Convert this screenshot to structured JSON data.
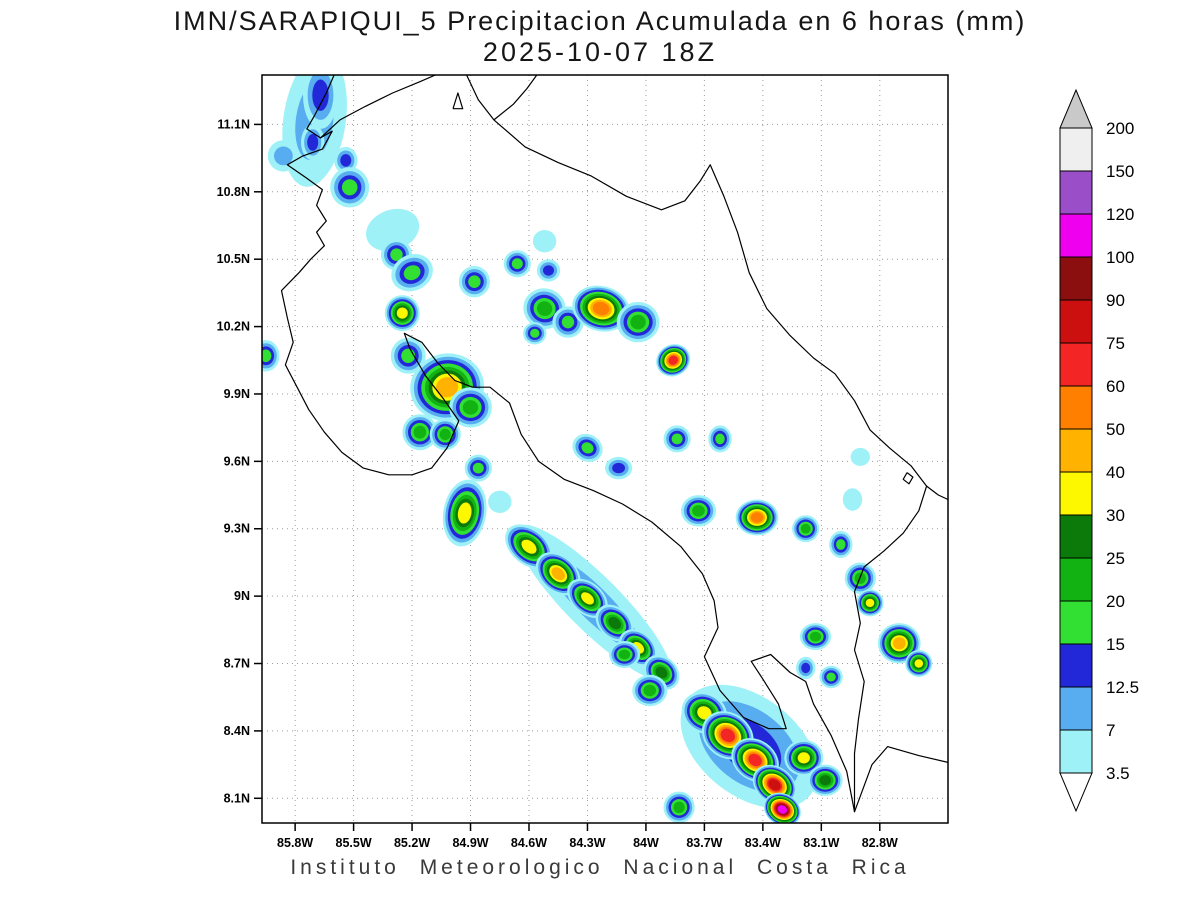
{
  "chart_data": {
    "type": "heatmap",
    "title_line1": "IMN/SARAPIQUI_5 Precipitacion Acumulada en 6 horas (mm)",
    "title_line2": "2025-10-07 18Z",
    "footer": "Instituto Meteorologico Nacional Costa Rica",
    "units": "mm",
    "extent": {
      "west": 85.97,
      "east": 82.45,
      "north": 11.32,
      "south": 7.99
    },
    "lat_ticks": [
      {
        "value": 11.1,
        "label": "11.1N"
      },
      {
        "value": 10.8,
        "label": "10.8N"
      },
      {
        "value": 10.5,
        "label": "10.5N"
      },
      {
        "value": 10.2,
        "label": "10.2N"
      },
      {
        "value": 9.9,
        "label": "9.9N"
      },
      {
        "value": 9.6,
        "label": "9.6N"
      },
      {
        "value": 9.3,
        "label": "9.3N"
      },
      {
        "value": 9.0,
        "label": "9N"
      },
      {
        "value": 8.7,
        "label": "8.7N"
      },
      {
        "value": 8.4,
        "label": "8.4N"
      },
      {
        "value": 8.1,
        "label": "8.1N"
      }
    ],
    "lon_ticks": [
      {
        "value": 85.8,
        "label": "85.8W"
      },
      {
        "value": 85.5,
        "label": "85.5W"
      },
      {
        "value": 85.2,
        "label": "85.2W"
      },
      {
        "value": 84.9,
        "label": "84.9W"
      },
      {
        "value": 84.6,
        "label": "84.6W"
      },
      {
        "value": 84.3,
        "label": "84.3W"
      },
      {
        "value": 84.0,
        "label": "84W"
      },
      {
        "value": 83.7,
        "label": "83.7W"
      },
      {
        "value": 83.4,
        "label": "83.4W"
      },
      {
        "value": 83.1,
        "label": "83.1W"
      },
      {
        "value": 82.8,
        "label": "82.8W"
      }
    ],
    "levels": [
      3.5,
      7,
      12.5,
      15,
      20,
      25,
      30,
      40,
      50,
      60,
      75,
      90,
      100,
      120,
      150,
      200
    ],
    "palette_by_level": {
      "3.5": "#9ef2f7",
      "7": "#58acf0",
      "12.5": "#2228d8",
      "15": "#31e032",
      "20": "#12b212",
      "25": "#0b7a0b",
      "30": "#fdf800",
      "40": "#ffb300",
      "50": "#ff7f00",
      "60": "#f42525",
      "75": "#cc0f0f",
      "90": "#8c0f0f",
      "100": "#ef00ef",
      "120": "#9a4fc8",
      "150": "#efefef",
      "200": "#c9c9c9"
    },
    "colorbar": {
      "boundary_labels": [
        "200",
        "150",
        "120",
        "100",
        "90",
        "75",
        "60",
        "50",
        "40",
        "30",
        "25",
        "20",
        "15",
        "12.5",
        "7",
        "3.5"
      ],
      "band_colors_top_to_bottom": [
        "#c9c9c9",
        "#efefef",
        "#9a4fc8",
        "#ef00ef",
        "#8c0f0f",
        "#cc0f0f",
        "#f42525",
        "#ff7f00",
        "#ffb300",
        "#fdf800",
        "#0b7a0b",
        "#12b212",
        "#31e032",
        "#2228d8",
        "#58acf0",
        "#9ef2f7",
        "#ffffff"
      ]
    },
    "coastlines": [
      [
        [
          85.6,
          11.32
        ],
        [
          85.64,
          11.24
        ],
        [
          85.7,
          11.14
        ],
        [
          85.74,
          11.08
        ],
        [
          85.67,
          11.04
        ],
        [
          85.61,
          11.07
        ],
        [
          85.66,
          10.99
        ],
        [
          85.76,
          10.96
        ],
        [
          85.84,
          10.92
        ],
        [
          85.74,
          10.86
        ],
        [
          85.66,
          10.81
        ],
        [
          85.69,
          10.74
        ],
        [
          85.64,
          10.67
        ],
        [
          85.69,
          10.62
        ],
        [
          85.65,
          10.56
        ],
        [
          85.72,
          10.5
        ],
        [
          85.78,
          10.44
        ],
        [
          85.87,
          10.36
        ],
        [
          85.84,
          10.24
        ],
        [
          85.81,
          10.13
        ],
        [
          85.85,
          10.03
        ],
        [
          85.79,
          9.93
        ],
        [
          85.73,
          9.83
        ],
        [
          85.65,
          9.73
        ],
        [
          85.56,
          9.64
        ],
        [
          85.45,
          9.57
        ],
        [
          85.32,
          9.54
        ],
        [
          85.2,
          9.54
        ],
        [
          85.1,
          9.57
        ],
        [
          85.02,
          9.66
        ],
        [
          84.96,
          9.78
        ],
        [
          85.04,
          9.88
        ],
        [
          85.13,
          9.98
        ],
        [
          85.21,
          10.1
        ],
        [
          85.24,
          10.17
        ],
        [
          85.15,
          10.13
        ],
        [
          85.07,
          10.04
        ],
        [
          84.98,
          9.96
        ],
        [
          84.89,
          9.93
        ],
        [
          84.8,
          9.93
        ],
        [
          84.7,
          9.86
        ],
        [
          84.64,
          9.72
        ],
        [
          84.55,
          9.6
        ],
        [
          84.42,
          9.52
        ],
        [
          84.27,
          9.47
        ],
        [
          84.12,
          9.41
        ],
        [
          83.97,
          9.33
        ],
        [
          83.82,
          9.22
        ],
        [
          83.71,
          9.1
        ],
        [
          83.65,
          8.98
        ],
        [
          83.63,
          8.86
        ],
        [
          83.7,
          8.73
        ],
        [
          83.62,
          8.58
        ],
        [
          83.5,
          8.46
        ],
        [
          83.37,
          8.41
        ],
        [
          83.28,
          8.41
        ],
        [
          83.32,
          8.52
        ],
        [
          83.4,
          8.63
        ],
        [
          83.46,
          8.71
        ],
        [
          83.36,
          8.74
        ],
        [
          83.26,
          8.66
        ],
        [
          83.18,
          8.62
        ],
        [
          83.14,
          8.52
        ],
        [
          83.05,
          8.38
        ],
        [
          82.97,
          8.22
        ],
        [
          82.93,
          8.04
        ],
        [
          82.84,
          8.25
        ],
        [
          82.76,
          8.33
        ],
        [
          82.6,
          8.29
        ],
        [
          82.45,
          8.26
        ]
      ],
      [
        [
          85.67,
          11.04
        ],
        [
          85.57,
          11.12
        ],
        [
          85.44,
          11.18
        ],
        [
          85.3,
          11.24
        ],
        [
          85.16,
          11.29
        ],
        [
          85.08,
          11.32
        ]
      ],
      [
        [
          84.92,
          11.32
        ],
        [
          84.86,
          11.21
        ],
        [
          84.78,
          11.12
        ],
        [
          84.68,
          11.19
        ],
        [
          84.61,
          11.26
        ],
        [
          84.56,
          11.32
        ]
      ],
      [
        [
          84.78,
          11.12
        ],
        [
          84.62,
          11.0
        ],
        [
          84.45,
          10.93
        ],
        [
          84.28,
          10.87
        ],
        [
          84.1,
          10.78
        ],
        [
          83.92,
          10.72
        ],
        [
          83.8,
          10.76
        ],
        [
          83.72,
          10.85
        ],
        [
          83.67,
          10.92
        ],
        [
          83.6,
          10.78
        ],
        [
          83.53,
          10.62
        ],
        [
          83.47,
          10.44
        ],
        [
          83.38,
          10.28
        ],
        [
          83.26,
          10.16
        ],
        [
          83.14,
          10.06
        ],
        [
          83.03,
          9.99
        ],
        [
          82.93,
          9.87
        ],
        [
          82.85,
          9.74
        ],
        [
          82.75,
          9.66
        ],
        [
          82.64,
          9.58
        ],
        [
          82.56,
          9.49
        ],
        [
          82.6,
          9.38
        ],
        [
          82.68,
          9.28
        ],
        [
          82.78,
          9.2
        ],
        [
          82.88,
          9.13
        ],
        [
          82.93,
          9.02
        ],
        [
          82.9,
          8.88
        ],
        [
          82.93,
          8.76
        ],
        [
          82.88,
          8.62
        ],
        [
          82.91,
          8.45
        ],
        [
          82.93,
          8.3
        ],
        [
          82.93,
          8.04
        ]
      ],
      [
        [
          82.56,
          9.49
        ],
        [
          82.5,
          9.45
        ],
        [
          82.45,
          9.43
        ]
      ],
      [
        [
          84.99,
          11.17
        ],
        [
          84.94,
          11.17
        ],
        [
          84.965,
          11.24
        ],
        [
          84.99,
          11.17
        ]
      ],
      [
        [
          82.66,
          9.55
        ],
        [
          82.63,
          9.53
        ],
        [
          82.65,
          9.5
        ],
        [
          82.68,
          9.52
        ],
        [
          82.66,
          9.55
        ]
      ]
    ],
    "cell_format": [
      "lon_w",
      "lat_n",
      "peak_level_mm",
      "rx_deg",
      "ry_deg",
      "rot_deg"
    ],
    "cells": [
      [
        85.7,
        11.12,
        7,
        0.16,
        0.3,
        8
      ],
      [
        85.67,
        11.23,
        12.5,
        0.09,
        0.15,
        0
      ],
      [
        85.71,
        11.02,
        12.5,
        0.06,
        0.08,
        0
      ],
      [
        85.86,
        10.96,
        7,
        0.08,
        0.07,
        0
      ],
      [
        85.54,
        10.94,
        12.5,
        0.06,
        0.06,
        0
      ],
      [
        85.52,
        10.82,
        15,
        0.1,
        0.09,
        0
      ],
      [
        85.3,
        10.63,
        3.5,
        0.14,
        0.09,
        -20
      ],
      [
        85.28,
        10.52,
        15,
        0.08,
        0.07,
        0
      ],
      [
        85.2,
        10.44,
        15,
        0.11,
        0.08,
        -25
      ],
      [
        84.88,
        10.4,
        15,
        0.08,
        0.07,
        0
      ],
      [
        84.66,
        10.48,
        15,
        0.07,
        0.06,
        0
      ],
      [
        84.5,
        10.45,
        12.5,
        0.06,
        0.05,
        0
      ],
      [
        84.52,
        10.58,
        3.5,
        0.06,
        0.05,
        0
      ],
      [
        84.52,
        10.28,
        20,
        0.11,
        0.09,
        20
      ],
      [
        84.4,
        10.22,
        15,
        0.08,
        0.07,
        0
      ],
      [
        84.23,
        10.28,
        50,
        0.15,
        0.1,
        15
      ],
      [
        84.04,
        10.22,
        20,
        0.11,
        0.09,
        0
      ],
      [
        83.86,
        10.05,
        60,
        0.09,
        0.07,
        -30
      ],
      [
        85.95,
        10.07,
        15,
        0.07,
        0.07,
        0
      ],
      [
        85.25,
        10.26,
        30,
        0.09,
        0.08,
        0
      ],
      [
        85.22,
        10.07,
        15,
        0.09,
        0.08,
        0
      ],
      [
        85.02,
        9.93,
        40,
        0.19,
        0.15,
        -10
      ],
      [
        84.9,
        9.84,
        20,
        0.11,
        0.09,
        0
      ],
      [
        85.16,
        9.73,
        20,
        0.09,
        0.08,
        0
      ],
      [
        85.03,
        9.72,
        20,
        0.08,
        0.07,
        0
      ],
      [
        84.86,
        9.57,
        15,
        0.07,
        0.06,
        0
      ],
      [
        84.57,
        10.17,
        15,
        0.06,
        0.05,
        0
      ],
      [
        84.3,
        9.66,
        15,
        0.08,
        0.06,
        30
      ],
      [
        84.14,
        9.57,
        12.5,
        0.07,
        0.05,
        0
      ],
      [
        83.84,
        9.7,
        15,
        0.07,
        0.06,
        0
      ],
      [
        83.62,
        9.7,
        15,
        0.06,
        0.06,
        0
      ],
      [
        84.93,
        9.37,
        30,
        0.11,
        0.15,
        10
      ],
      [
        84.75,
        9.42,
        3.5,
        0.06,
        0.05,
        0
      ],
      [
        83.73,
        9.38,
        20,
        0.09,
        0.07,
        0
      ],
      [
        83.43,
        9.35,
        50,
        0.11,
        0.08,
        0
      ],
      [
        83.18,
        9.3,
        20,
        0.07,
        0.06,
        0
      ],
      [
        83.0,
        9.23,
        15,
        0.06,
        0.06,
        0
      ],
      [
        82.94,
        9.43,
        3.5,
        0.05,
        0.05,
        0
      ],
      [
        82.9,
        9.62,
        3.5,
        0.05,
        0.04,
        0
      ],
      [
        84.27,
        8.97,
        7,
        0.55,
        0.12,
        45
      ],
      [
        84.6,
        9.22,
        30,
        0.14,
        0.08,
        40
      ],
      [
        84.45,
        9.1,
        40,
        0.13,
        0.08,
        42
      ],
      [
        84.3,
        8.99,
        30,
        0.12,
        0.07,
        42
      ],
      [
        84.16,
        8.88,
        25,
        0.11,
        0.07,
        42
      ],
      [
        84.04,
        8.77,
        30,
        0.11,
        0.07,
        42
      ],
      [
        83.92,
        8.66,
        25,
        0.1,
        0.07,
        42
      ],
      [
        84.11,
        8.74,
        20,
        0.08,
        0.06,
        0
      ],
      [
        83.98,
        8.58,
        20,
        0.09,
        0.07,
        0
      ],
      [
        82.9,
        9.08,
        20,
        0.08,
        0.07,
        0
      ],
      [
        82.85,
        8.97,
        30,
        0.07,
        0.06,
        0
      ],
      [
        83.47,
        8.33,
        12.5,
        0.4,
        0.22,
        38
      ],
      [
        83.7,
        8.48,
        30,
        0.12,
        0.09,
        30
      ],
      [
        83.58,
        8.38,
        60,
        0.14,
        0.1,
        35
      ],
      [
        83.44,
        8.27,
        60,
        0.13,
        0.09,
        35
      ],
      [
        83.34,
        8.16,
        75,
        0.12,
        0.08,
        35
      ],
      [
        83.3,
        8.05,
        100,
        0.1,
        0.07,
        30
      ],
      [
        83.19,
        8.28,
        30,
        0.1,
        0.08,
        0
      ],
      [
        83.08,
        8.18,
        25,
        0.09,
        0.07,
        0
      ],
      [
        83.83,
        8.06,
        20,
        0.08,
        0.07,
        0
      ],
      [
        83.18,
        8.68,
        12.5,
        0.05,
        0.05,
        0
      ],
      [
        83.13,
        8.82,
        20,
        0.08,
        0.06,
        0
      ],
      [
        83.05,
        8.64,
        15,
        0.06,
        0.05,
        0
      ],
      [
        82.7,
        8.79,
        40,
        0.11,
        0.09,
        0
      ],
      [
        82.6,
        8.7,
        30,
        0.07,
        0.06,
        0
      ]
    ]
  }
}
